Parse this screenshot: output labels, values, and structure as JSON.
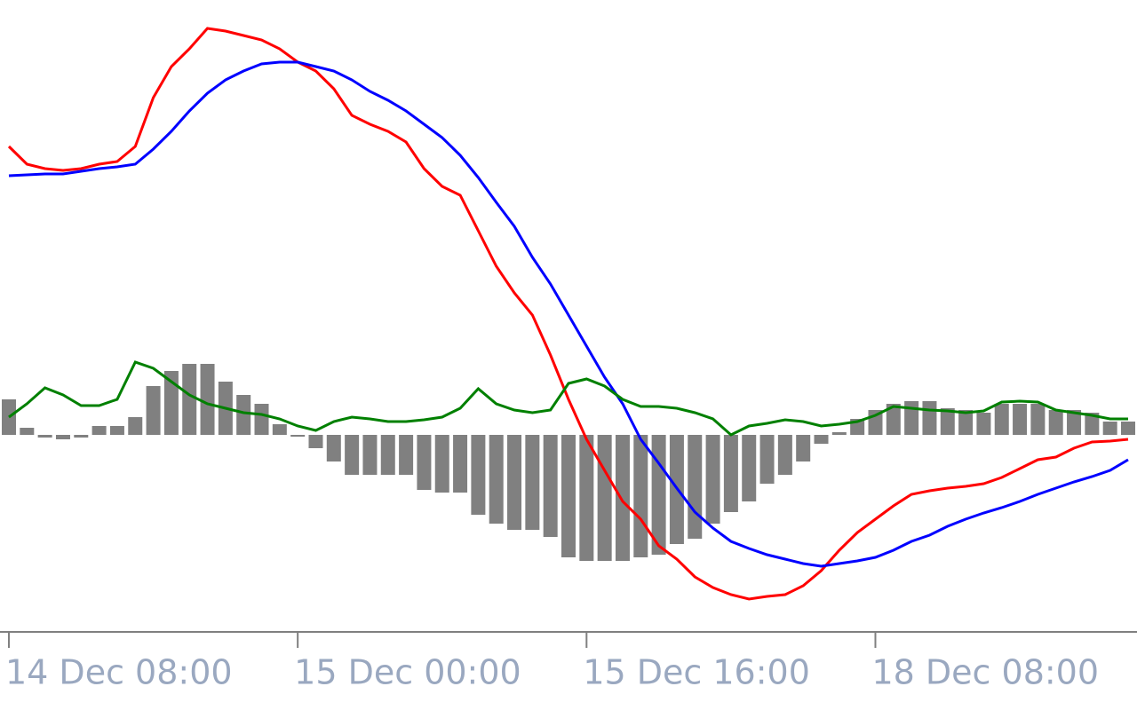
{
  "chart_data": {
    "type": "combo",
    "categories": [
      "14 Dec 08:00",
      null,
      null,
      null,
      null,
      null,
      null,
      null,
      null,
      null,
      null,
      null,
      null,
      null,
      null,
      null,
      "15 Dec 00:00",
      null,
      null,
      null,
      null,
      null,
      null,
      null,
      null,
      null,
      null,
      null,
      null,
      null,
      null,
      null,
      "15 Dec 16:00",
      null,
      null,
      null,
      null,
      null,
      null,
      null,
      null,
      null,
      null,
      null,
      null,
      null,
      null,
      null,
      "18 Dec 08:00",
      null,
      null,
      null,
      null,
      null,
      null,
      null,
      null,
      null,
      null,
      null,
      null,
      null,
      null
    ],
    "ylim": [
      -215,
      490
    ],
    "series": [
      {
        "type": "bar",
        "color": "#808080",
        "values": [
          40,
          8,
          -3,
          -5,
          -3,
          10,
          10,
          20,
          55,
          72,
          80,
          80,
          60,
          45,
          35,
          12,
          -2,
          -15,
          -30,
          -45,
          -45,
          -45,
          -45,
          -62,
          -65,
          -65,
          -90,
          -100,
          -107,
          -107,
          -115,
          -138,
          -142,
          -142,
          -142,
          -138,
          -135,
          -123,
          -117,
          -100,
          -87,
          -75,
          -55,
          -45,
          -30,
          -10,
          3,
          18,
          28,
          35,
          38,
          38,
          30,
          28,
          25,
          35,
          35,
          35,
          28,
          28,
          25,
          15,
          15
        ]
      },
      {
        "type": "line",
        "color": "#ff0000",
        "values": [
          325,
          305,
          300,
          298,
          300,
          305,
          308,
          325,
          380,
          415,
          435,
          458,
          455,
          450,
          445,
          435,
          420,
          410,
          390,
          360,
          350,
          342,
          330,
          300,
          280,
          270,
          230,
          190,
          160,
          135,
          90,
          40,
          -5,
          -40,
          -75,
          -95,
          -125,
          -140,
          -160,
          -172,
          -180,
          -185,
          -182,
          -180,
          -170,
          -153,
          -130,
          -110,
          -95,
          -80,
          -67,
          -63,
          -60,
          -58,
          -55,
          -48,
          -38,
          -28,
          -25,
          -15,
          -8,
          -7,
          -5
        ]
      },
      {
        "type": "line",
        "color": "#0000ff",
        "values": [
          292,
          293,
          294,
          294,
          297,
          300,
          302,
          305,
          322,
          342,
          365,
          385,
          400,
          410,
          418,
          420,
          420,
          415,
          410,
          400,
          387,
          377,
          365,
          350,
          335,
          315,
          290,
          262,
          235,
          200,
          170,
          135,
          100,
          65,
          35,
          -5,
          -32,
          -60,
          -87,
          -105,
          -120,
          -128,
          -135,
          -140,
          -145,
          -148,
          -145,
          -142,
          -138,
          -130,
          -120,
          -113,
          -103,
          -95,
          -88,
          -82,
          -75,
          -67,
          -60,
          -53,
          -47,
          -40,
          -28
        ]
      },
      {
        "type": "line",
        "color": "#008000",
        "values": [
          20,
          35,
          53,
          45,
          33,
          33,
          40,
          82,
          75,
          60,
          45,
          35,
          30,
          25,
          23,
          18,
          10,
          5,
          15,
          20,
          18,
          15,
          15,
          17,
          20,
          30,
          52,
          35,
          28,
          25,
          28,
          58,
          63,
          55,
          40,
          32,
          32,
          30,
          25,
          18,
          0,
          10,
          13,
          17,
          15,
          10,
          12,
          15,
          22,
          32,
          30,
          28,
          27,
          25,
          27,
          37,
          38,
          37,
          28,
          25,
          22,
          18,
          18
        ]
      }
    ]
  }
}
